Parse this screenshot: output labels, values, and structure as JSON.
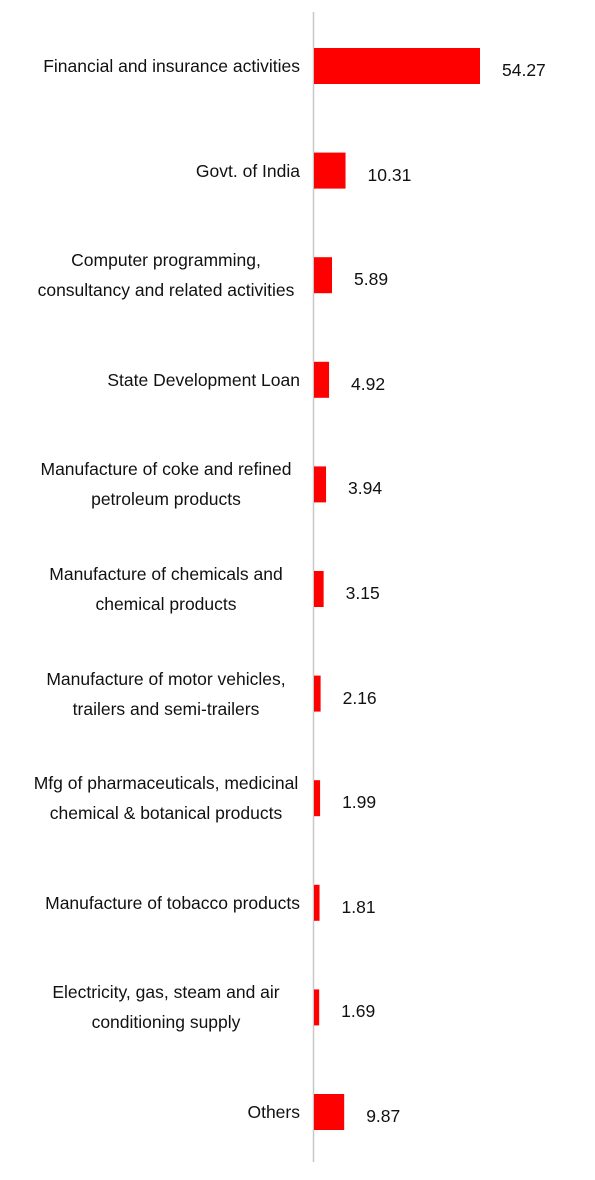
{
  "chart_data": {
    "type": "bar",
    "orientation": "horizontal",
    "color": "#ff0000",
    "categories": [
      "Financial and insurance activities",
      "Govt. of India",
      "Computer programming, consultancy and related activities",
      "State Development Loan",
      "Manufacture of coke and refined petroleum products",
      "Manufacture of chemicals and chemical products",
      "Manufacture of motor vehicles, trailers and semi-trailers",
      "Mfg of pharmaceuticals, medicinal chemical & botanical products",
      "Manufacture of tobacco products",
      "Electricity, gas, steam and air conditioning supply",
      "Others"
    ],
    "values": [
      54.27,
      10.31,
      5.89,
      4.92,
      3.94,
      3.15,
      2.16,
      1.99,
      1.81,
      1.69,
      9.87
    ]
  }
}
